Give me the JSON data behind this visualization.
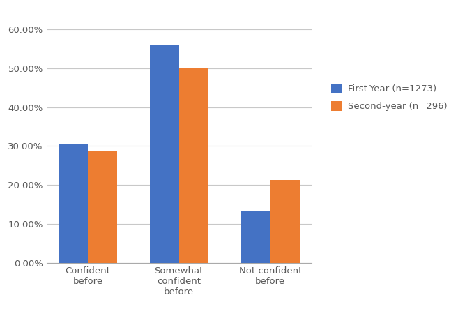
{
  "categories": [
    "Confident\nbefore",
    "Somewhat\nconfident\nbefore",
    "Not confident\nbefore"
  ],
  "first_year": [
    0.3047,
    0.5614,
    0.1339
  ],
  "second_year": [
    0.2872,
    0.5,
    0.2128
  ],
  "first_year_label": "First-Year (n=1273)",
  "second_year_label": "Second-year (n=296)",
  "first_year_color": "#4472C4",
  "second_year_color": "#ED7D31",
  "ylim": [
    0,
    0.62
  ],
  "yticks": [
    0.0,
    0.1,
    0.2,
    0.3,
    0.4,
    0.5,
    0.6
  ],
  "bar_width": 0.32,
  "background_color": "#ffffff",
  "grid_color": "#c8c8c8",
  "border_color": "#aaaaaa",
  "tick_label_color": "#595959",
  "legend_fontsize": 9.5,
  "tick_fontsize": 9.5
}
